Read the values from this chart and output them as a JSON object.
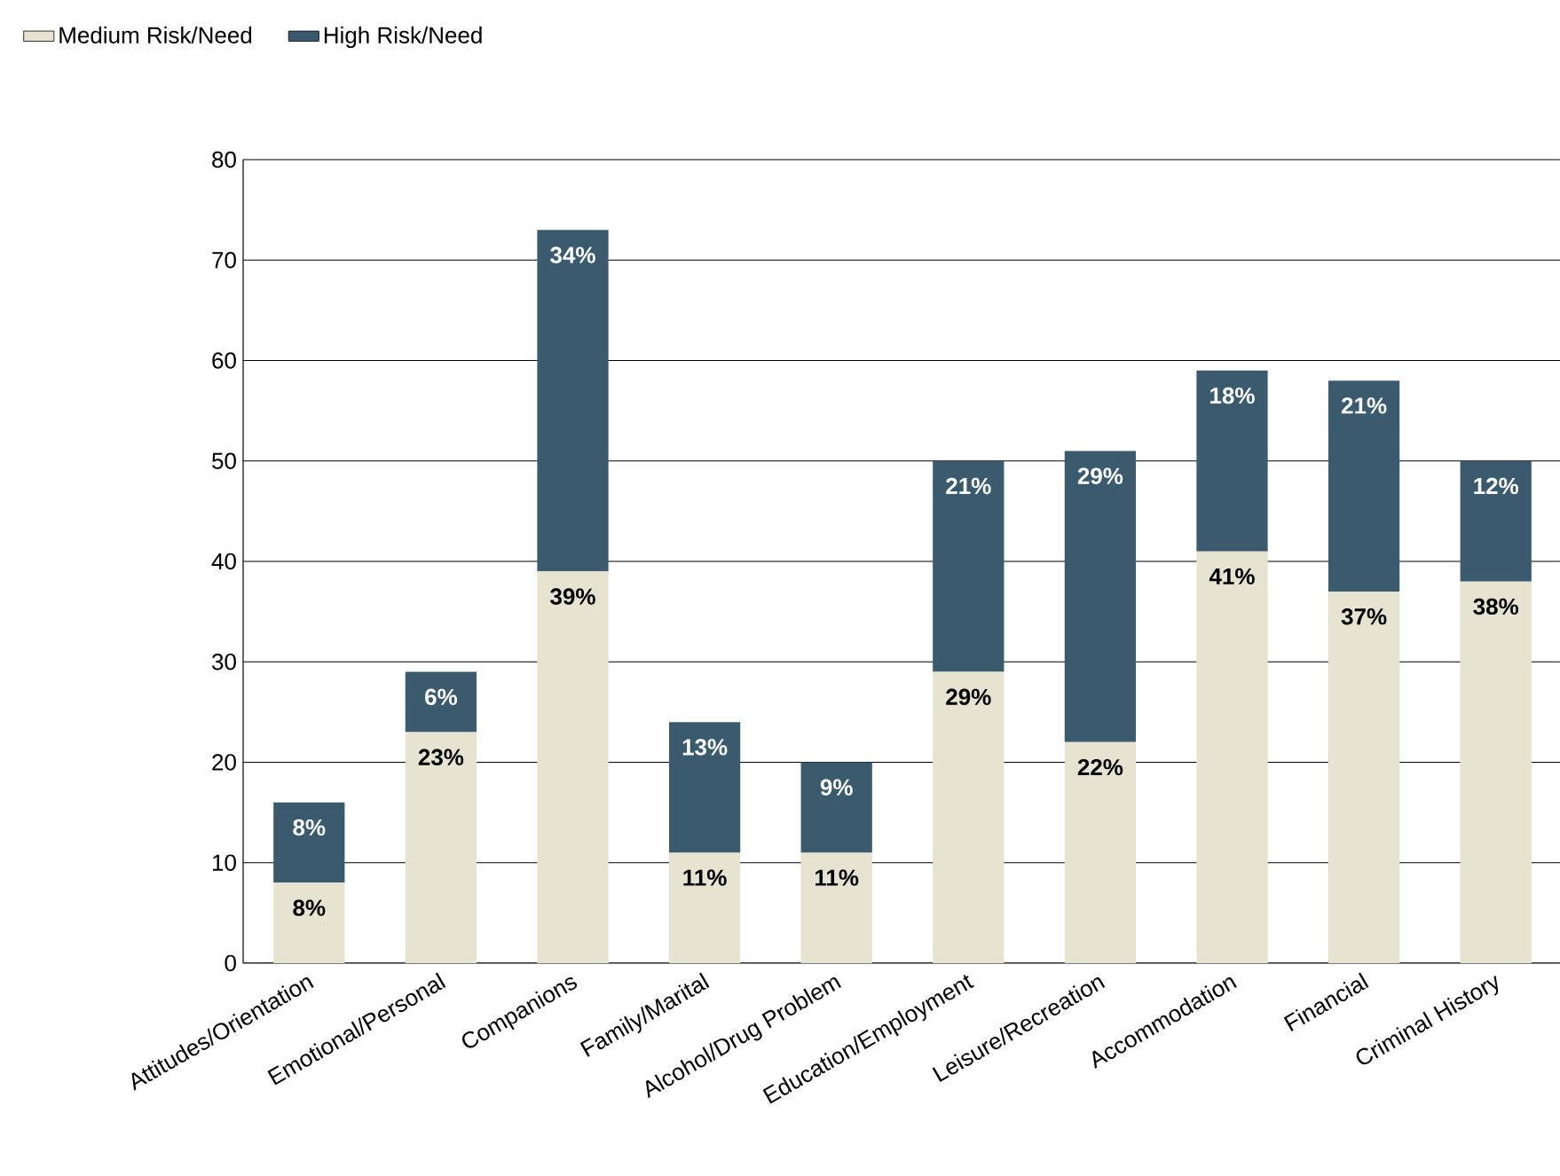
{
  "chart_data": {
    "type": "bar",
    "stacked": true,
    "categories": [
      "Attitudes/Orientation",
      "Emotional/Personal",
      "Companions",
      "Family/Marital",
      "Alcohol/Drug Problem",
      "Education/Employment",
      "Leisure/Recreation",
      "Accommodation",
      "Financial",
      "Criminal History"
    ],
    "series": [
      {
        "name": "Medium Risk/Need",
        "color": "#e6e4d0",
        "values": [
          8,
          23,
          39,
          11,
          11,
          29,
          22,
          41,
          37,
          38
        ],
        "value_labels": [
          "8%",
          "23%",
          "39%",
          "11%",
          "11%",
          "29%",
          "22%",
          "41%",
          "37%",
          "38%"
        ]
      },
      {
        "name": "High Risk/Need",
        "color": "#3a5b6e",
        "values": [
          8,
          6,
          34,
          13,
          9,
          21,
          29,
          18,
          21,
          12
        ],
        "value_labels": [
          "8%",
          "6%",
          "34%",
          "13%",
          "9%",
          "21%",
          "29%",
          "18%",
          "21%",
          "12%"
        ]
      }
    ],
    "ylim": [
      0,
      80
    ],
    "yticks": [
      0,
      10,
      20,
      30,
      40,
      50,
      60,
      70,
      80
    ],
    "grid": "y",
    "legend": "top left"
  }
}
